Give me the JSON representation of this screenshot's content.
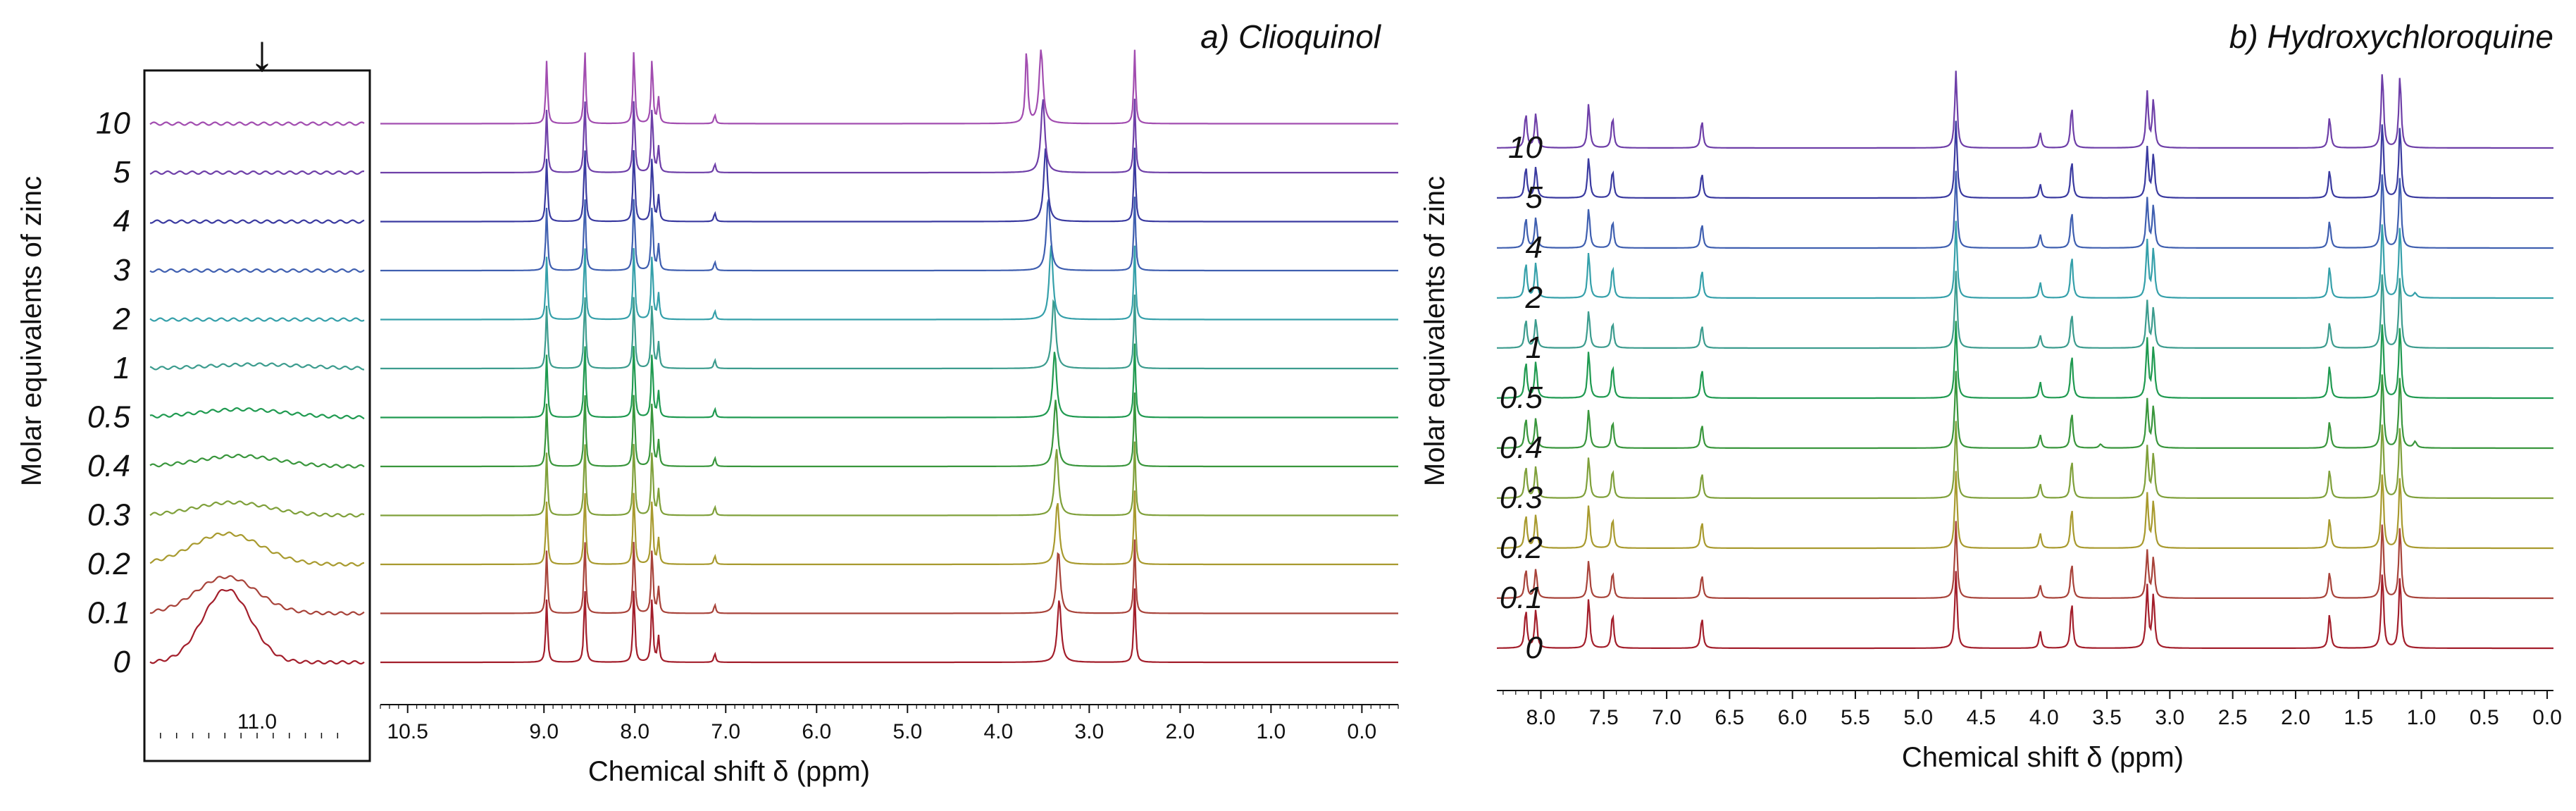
{
  "ylabel": "Molar equivalents of zinc",
  "colors": [
    "#a31e2b",
    "#a8433a",
    "#a89a2e",
    "#7fa03a",
    "#39963c",
    "#1f9a50",
    "#3c9c8e",
    "#35a0aa",
    "#3f5fb0",
    "#3a3aa0",
    "#6e3fa8",
    "#a24db0",
    "#b04a86"
  ],
  "chart_data": [
    {
      "id": "inset-a",
      "type": "line",
      "title": "",
      "xlabel": "",
      "marker": "↓",
      "xlim": [
        11.35,
        10.65
      ],
      "xticks": [
        {
          "value": 11.0,
          "label": "11.0"
        }
      ],
      "series": [
        {
          "name": "0",
          "oh_peak": {
            "center": 11.1,
            "height": 0.9,
            "width": 0.11
          }
        },
        {
          "name": "0.1",
          "oh_peak": {
            "center": 11.1,
            "height": 0.45,
            "width": 0.14
          }
        },
        {
          "name": "0.2",
          "oh_peak": {
            "center": 11.1,
            "height": 0.38,
            "width": 0.16
          }
        },
        {
          "name": "0.3",
          "oh_peak": {
            "center": 11.08,
            "height": 0.16,
            "width": 0.17
          }
        },
        {
          "name": "0.4",
          "oh_peak": {
            "center": 11.06,
            "height": 0.13,
            "width": 0.18
          }
        },
        {
          "name": "0.5",
          "oh_peak": {
            "center": 11.05,
            "height": 0.1,
            "width": 0.2
          }
        },
        {
          "name": "1",
          "oh_peak": {
            "center": 11.0,
            "height": 0.05,
            "width": 0.22
          }
        },
        {
          "name": "2",
          "oh_peak": {
            "center": 11.0,
            "height": 0.0,
            "width": 0.2
          }
        },
        {
          "name": "3",
          "oh_peak": {
            "center": 11.0,
            "height": 0.0,
            "width": 0.2
          }
        },
        {
          "name": "4",
          "oh_peak": {
            "center": 11.0,
            "height": 0.0,
            "width": 0.2
          }
        },
        {
          "name": "5",
          "oh_peak": {
            "center": 11.0,
            "height": 0.0,
            "width": 0.2
          }
        },
        {
          "name": "10",
          "oh_peak": {
            "center": 11.0,
            "height": 0.0,
            "width": 0.2
          }
        }
      ]
    },
    {
      "id": "clioquinol",
      "type": "line",
      "title": "a) Clioquinol",
      "xlabel": "Chemical shift δ (ppm)",
      "xlim": [
        10.8,
        -0.4
      ],
      "xticks": [
        {
          "value": 10.5,
          "label": "10.5"
        },
        {
          "value": 9.0,
          "label": "9.0"
        },
        {
          "value": 8.0,
          "label": "8.0"
        },
        {
          "value": 7.0,
          "label": "7.0"
        },
        {
          "value": 6.0,
          "label": "6.0"
        },
        {
          "value": 5.0,
          "label": "5.0"
        },
        {
          "value": 4.0,
          "label": "4.0"
        },
        {
          "value": 3.0,
          "label": "3.0"
        },
        {
          "value": 2.0,
          "label": "2.0"
        },
        {
          "value": 1.0,
          "label": "1.0"
        },
        {
          "value": 0.0,
          "label": "0.0"
        }
      ],
      "common_peaks": [
        {
          "ppm": 8.97,
          "height": 0.85
        },
        {
          "ppm": 8.55,
          "height": 1.0
        },
        {
          "ppm": 8.01,
          "height": 1.0
        },
        {
          "ppm": 7.81,
          "height": 0.9
        },
        {
          "ppm": 7.74,
          "height": 0.35
        },
        {
          "ppm": 7.12,
          "height": 0.12
        },
        {
          "ppm": 2.5,
          "height": 1.0
        }
      ],
      "series": [
        {
          "name": "0",
          "water": {
            "ppm": 3.33,
            "height": 0.85
          },
          "extra": []
        },
        {
          "name": "0.1",
          "water": {
            "ppm": 3.34,
            "height": 0.85
          },
          "extra": []
        },
        {
          "name": "0.2",
          "water": {
            "ppm": 3.35,
            "height": 0.85
          },
          "extra": []
        },
        {
          "name": "0.3",
          "water": {
            "ppm": 3.36,
            "height": 0.9
          },
          "extra": []
        },
        {
          "name": "0.4",
          "water": {
            "ppm": 3.37,
            "height": 0.9
          },
          "extra": []
        },
        {
          "name": "0.5",
          "water": {
            "ppm": 3.38,
            "height": 0.9
          },
          "extra": []
        },
        {
          "name": "1",
          "water": {
            "ppm": 3.39,
            "height": 0.95
          },
          "extra": []
        },
        {
          "name": "2",
          "water": {
            "ppm": 3.42,
            "height": 1.0
          },
          "extra": []
        },
        {
          "name": "3",
          "water": {
            "ppm": 3.45,
            "height": 1.0
          },
          "extra": []
        },
        {
          "name": "4",
          "water": {
            "ppm": 3.48,
            "height": 1.0
          },
          "extra": []
        },
        {
          "name": "5",
          "water": {
            "ppm": 3.51,
            "height": 1.0
          },
          "extra": []
        },
        {
          "name": "10",
          "water": {
            "ppm": 3.53,
            "height": 1.0
          },
          "extra": [
            {
              "ppm": 3.69,
              "height": 1.0
            }
          ]
        }
      ]
    },
    {
      "id": "hydroxychloroquine",
      "type": "line",
      "title": "b) Hydroxychloroquine",
      "xlabel": "Chemical shift δ (ppm)",
      "xlim": [
        8.35,
        -0.05
      ],
      "xticks": [
        {
          "value": 8.0,
          "label": "8.0"
        },
        {
          "value": 7.5,
          "label": "7.5"
        },
        {
          "value": 7.0,
          "label": "7.0"
        },
        {
          "value": 6.5,
          "label": "6.5"
        },
        {
          "value": 6.0,
          "label": "6.0"
        },
        {
          "value": 5.5,
          "label": "5.5"
        },
        {
          "value": 5.0,
          "label": "5.0"
        },
        {
          "value": 4.5,
          "label": "4.5"
        },
        {
          "value": 4.0,
          "label": "4.0"
        },
        {
          "value": 3.5,
          "label": "3.5"
        },
        {
          "value": 3.0,
          "label": "3.0"
        },
        {
          "value": 2.5,
          "label": "2.5"
        },
        {
          "value": 2.0,
          "label": "2.0"
        },
        {
          "value": 1.5,
          "label": "1.5"
        },
        {
          "value": 1.0,
          "label": "1.0"
        },
        {
          "value": 0.5,
          "label": "0.5"
        },
        {
          "value": 0.0,
          "label": "0.0"
        }
      ],
      "common_peaks": [
        {
          "ppm": 8.12,
          "height": 0.5
        },
        {
          "ppm": 8.04,
          "height": 0.5
        },
        {
          "ppm": 7.62,
          "height": 0.65
        },
        {
          "ppm": 7.43,
          "height": 0.45
        },
        {
          "ppm": 6.72,
          "height": 0.4
        },
        {
          "ppm": 4.7,
          "height": 1.0
        },
        {
          "ppm": 4.03,
          "height": 0.22
        },
        {
          "ppm": 3.78,
          "height": 0.6
        },
        {
          "ppm": 3.18,
          "height": 0.8
        },
        {
          "ppm": 3.13,
          "height": 0.7
        },
        {
          "ppm": 1.73,
          "height": 0.45
        },
        {
          "ppm": 1.31,
          "height": 1.0
        },
        {
          "ppm": 1.17,
          "height": 0.95
        }
      ],
      "series": [
        {
          "name": "0",
          "extra": []
        },
        {
          "name": "0.1",
          "extra": []
        },
        {
          "name": "0.2",
          "extra": []
        },
        {
          "name": "0.3",
          "extra": []
        },
        {
          "name": "0.4",
          "extra": [
            {
              "ppm": 3.55,
              "height": 0.05
            },
            {
              "ppm": 1.05,
              "height": 0.08
            }
          ]
        },
        {
          "name": "0.5",
          "extra": []
        },
        {
          "name": "1",
          "extra": []
        },
        {
          "name": "2",
          "extra": [
            {
              "ppm": 1.05,
              "height": 0.06
            }
          ]
        },
        {
          "name": "4",
          "extra": []
        },
        {
          "name": "5",
          "extra": []
        },
        {
          "name": "10",
          "extra": []
        }
      ]
    }
  ]
}
